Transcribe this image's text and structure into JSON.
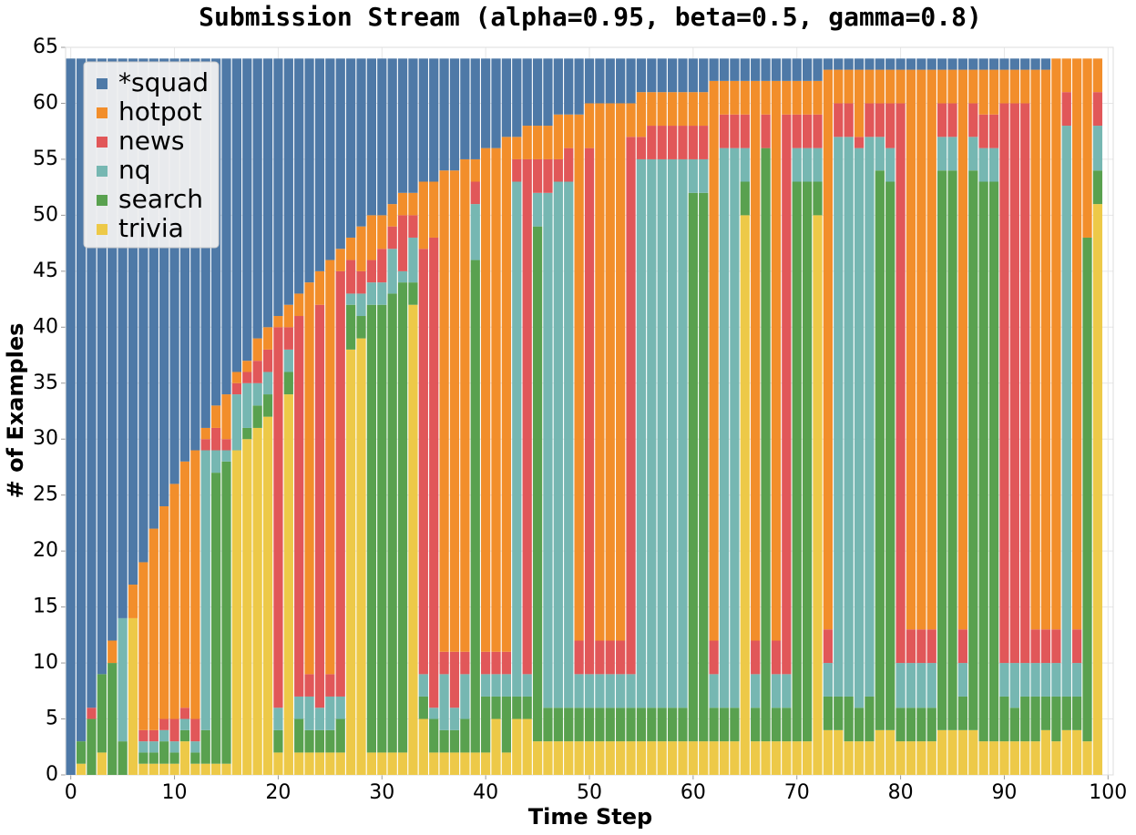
{
  "chart_data": {
    "type": "stacked_bar",
    "title": "Submission Stream (alpha=0.95, beta=0.5, gamma=0.8)",
    "x_label": "Time Step",
    "y_label": "# of Examples",
    "x": [
      0,
      1,
      2,
      3,
      4,
      5,
      6,
      7,
      8,
      9,
      10,
      11,
      12,
      13,
      14,
      15,
      16,
      17,
      18,
      19,
      20,
      21,
      22,
      23,
      24,
      25,
      26,
      27,
      28,
      29,
      30,
      31,
      32,
      33,
      34,
      35,
      36,
      37,
      38,
      39,
      40,
      41,
      42,
      43,
      44,
      45,
      46,
      47,
      48,
      49,
      50,
      51,
      52,
      53,
      54,
      55,
      56,
      57,
      58,
      59,
      60,
      61,
      62,
      63,
      64,
      65,
      66,
      67,
      68,
      69,
      70,
      71,
      72,
      73,
      74,
      75,
      76,
      77,
      78,
      79,
      80,
      81,
      82,
      83,
      84,
      85,
      86,
      87,
      88,
      89,
      90,
      91,
      92,
      93,
      94,
      95,
      96,
      97,
      98,
      99
    ],
    "series": [
      {
        "name": "*squad",
        "color": "#4e79a7",
        "values": [
          64,
          61,
          58,
          55,
          52,
          50,
          47,
          45,
          42,
          40,
          38,
          36,
          35,
          33,
          31,
          30,
          28,
          27,
          25,
          24,
          23,
          22,
          21,
          20,
          19,
          18,
          17,
          16,
          15,
          14,
          14,
          13,
          12,
          12,
          11,
          11,
          10,
          10,
          9,
          9,
          8,
          8,
          7,
          7,
          6,
          6,
          6,
          5,
          5,
          5,
          4,
          4,
          4,
          4,
          4,
          3,
          3,
          3,
          3,
          3,
          3,
          3,
          2,
          2,
          2,
          2,
          2,
          2,
          2,
          2,
          2,
          2,
          2,
          1,
          1,
          1,
          1,
          1,
          1,
          1,
          1,
          1,
          1,
          1,
          1,
          1,
          1,
          1,
          1,
          1,
          1,
          1,
          1,
          1,
          1,
          0,
          0,
          0,
          0,
          0
        ]
      },
      {
        "name": "hotpot",
        "color": "#f28e2b",
        "values": [
          0,
          0,
          0,
          0,
          2,
          0,
          3,
          15,
          18,
          19,
          21,
          22,
          24,
          1,
          2,
          4,
          1,
          1,
          2,
          2,
          1,
          2,
          2,
          35,
          3,
          37,
          2,
          2,
          4,
          4,
          3,
          2,
          2,
          2,
          6,
          5,
          43,
          43,
          44,
          2,
          45,
          45,
          46,
          2,
          3,
          3,
          3,
          4,
          3,
          47,
          4,
          48,
          48,
          48,
          3,
          4,
          3,
          3,
          3,
          3,
          3,
          3,
          50,
          3,
          3,
          3,
          50,
          3,
          50,
          3,
          3,
          3,
          3,
          50,
          3,
          3,
          6,
          3,
          3,
          3,
          3,
          50,
          50,
          50,
          3,
          3,
          50,
          3,
          4,
          4,
          3,
          3,
          3,
          50,
          50,
          51,
          3,
          51,
          16,
          3
        ]
      },
      {
        "name": "news",
        "color": "#e15759",
        "values": [
          0,
          0,
          1,
          0,
          0,
          0,
          0,
          1,
          1,
          1,
          2,
          1,
          2,
          1,
          2,
          1,
          1,
          1,
          2,
          2,
          34,
          2,
          34,
          2,
          36,
          2,
          38,
          3,
          2,
          2,
          3,
          2,
          5,
          2,
          38,
          42,
          2,
          5,
          2,
          2,
          2,
          2,
          2,
          2,
          46,
          3,
          3,
          2,
          3,
          3,
          47,
          3,
          3,
          3,
          48,
          2,
          3,
          3,
          3,
          3,
          3,
          3,
          3,
          3,
          3,
          3,
          3,
          3,
          3,
          50,
          3,
          3,
          3,
          3,
          3,
          3,
          1,
          3,
          3,
          4,
          50,
          3,
          3,
          3,
          3,
          3,
          3,
          3,
          3,
          3,
          50,
          50,
          50,
          3,
          3,
          3,
          3,
          3,
          0,
          3
        ]
      },
      {
        "name": "nq",
        "color": "#76b7b2",
        "values": [
          0,
          0,
          0,
          0,
          0,
          11,
          0,
          1,
          1,
          1,
          1,
          1,
          1,
          25,
          2,
          1,
          5,
          4,
          2,
          2,
          2,
          2,
          2,
          3,
          2,
          3,
          2,
          1,
          2,
          2,
          2,
          4,
          1,
          4,
          2,
          1,
          5,
          2,
          4,
          5,
          2,
          2,
          2,
          46,
          2,
          3,
          46,
          47,
          47,
          3,
          3,
          3,
          3,
          3,
          3,
          49,
          49,
          49,
          49,
          49,
          3,
          3,
          3,
          50,
          50,
          3,
          3,
          0,
          3,
          3,
          3,
          3,
          3,
          3,
          50,
          50,
          50,
          50,
          3,
          3,
          4,
          4,
          4,
          4,
          3,
          3,
          3,
          3,
          3,
          3,
          3,
          4,
          3,
          3,
          3,
          3,
          51,
          3,
          0,
          4
        ]
      },
      {
        "name": "search",
        "color": "#59a14f",
        "values": [
          0,
          2,
          5,
          7,
          10,
          3,
          0,
          1,
          1,
          2,
          1,
          1,
          1,
          3,
          26,
          27,
          0,
          1,
          2,
          2,
          2,
          2,
          3,
          2,
          2,
          2,
          3,
          4,
          2,
          40,
          40,
          41,
          42,
          2,
          2,
          3,
          2,
          2,
          3,
          44,
          5,
          2,
          5,
          2,
          2,
          46,
          3,
          3,
          3,
          3,
          3,
          3,
          3,
          3,
          3,
          3,
          3,
          3,
          3,
          3,
          49,
          49,
          3,
          3,
          3,
          3,
          3,
          53,
          3,
          3,
          50,
          50,
          3,
          3,
          3,
          4,
          3,
          4,
          50,
          49,
          3,
          3,
          3,
          3,
          50,
          50,
          3,
          50,
          50,
          50,
          4,
          3,
          4,
          4,
          3,
          4,
          3,
          3,
          45,
          3
        ]
      },
      {
        "name": "trivia",
        "color": "#edc948",
        "values": [
          0,
          1,
          0,
          2,
          0,
          0,
          14,
          1,
          1,
          1,
          1,
          3,
          1,
          1,
          1,
          1,
          29,
          30,
          31,
          32,
          2,
          34,
          2,
          2,
          2,
          2,
          2,
          38,
          39,
          2,
          2,
          2,
          2,
          42,
          5,
          2,
          2,
          2,
          2,
          2,
          2,
          5,
          2,
          5,
          5,
          3,
          3,
          3,
          3,
          3,
          3,
          3,
          3,
          3,
          3,
          3,
          3,
          3,
          3,
          3,
          3,
          3,
          3,
          3,
          3,
          50,
          3,
          3,
          3,
          3,
          3,
          3,
          50,
          4,
          4,
          3,
          3,
          3,
          4,
          4,
          3,
          3,
          3,
          3,
          4,
          4,
          4,
          4,
          3,
          3,
          3,
          3,
          3,
          3,
          4,
          3,
          4,
          4,
          3,
          51
        ]
      }
    ],
    "xlim": [
      -0.5,
      100.5
    ],
    "xticks": [
      0,
      10,
      20,
      30,
      40,
      50,
      60,
      70,
      80,
      90,
      100
    ],
    "ylim": [
      0,
      65
    ],
    "yticks": [
      0,
      5,
      10,
      15,
      20,
      25,
      30,
      35,
      40,
      45,
      50,
      55,
      60,
      65
    ],
    "grid": true,
    "legend": "upper-left"
  }
}
